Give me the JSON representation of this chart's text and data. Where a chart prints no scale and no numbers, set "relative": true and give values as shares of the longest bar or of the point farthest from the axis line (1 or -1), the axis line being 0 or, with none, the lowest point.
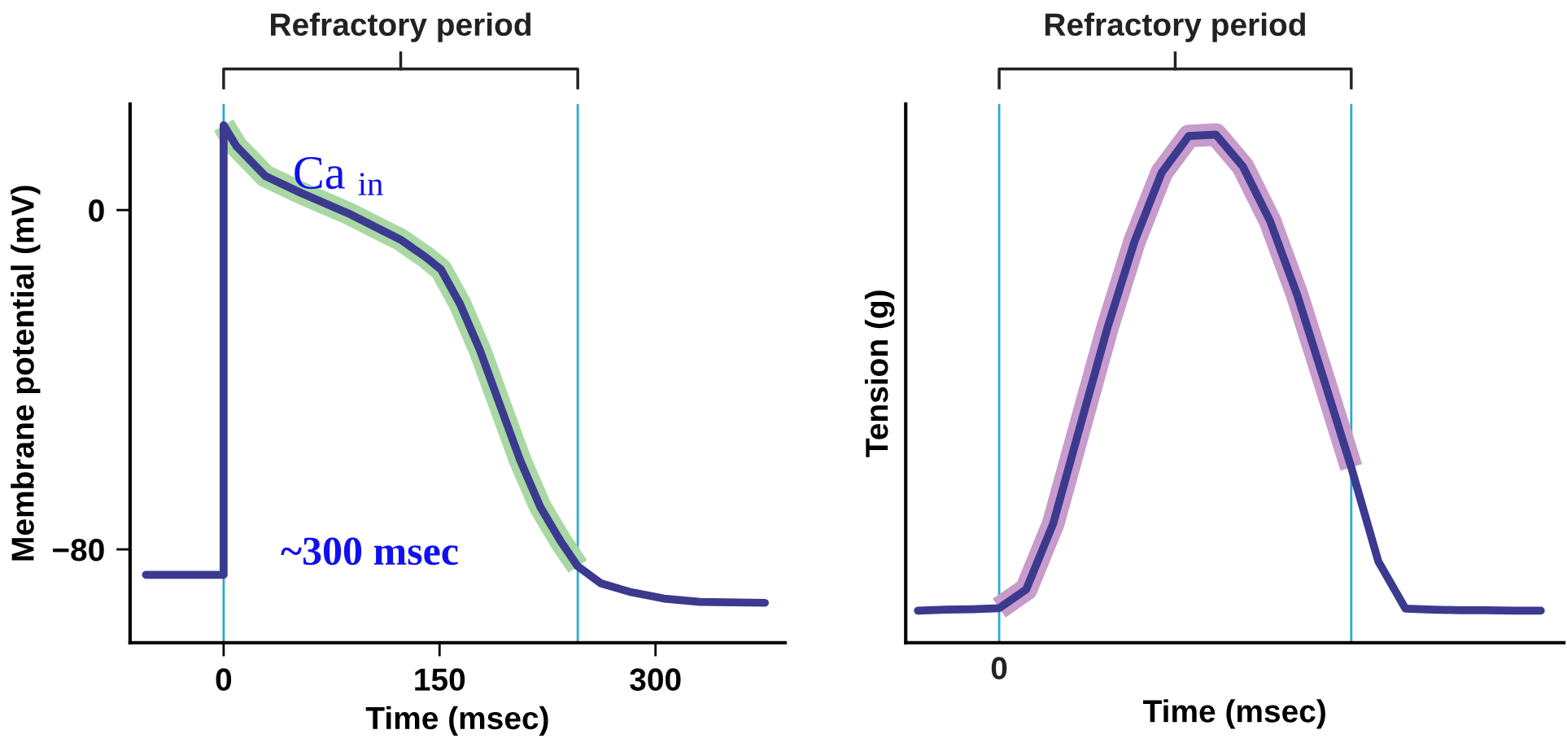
{
  "chart_data": [
    {
      "type": "line",
      "xlabel": "Time (msec)",
      "ylabel": "Membrane potential (mV)",
      "xlim": [
        -65,
        390
      ],
      "xticks": [
        0,
        150,
        300
      ],
      "ylim": [
        -102,
        25
      ],
      "yticks": [
        0,
        {
          "value": -80,
          "label": "−80"
        }
      ],
      "grid": false,
      "legend": false,
      "marker": "none",
      "line_style": "solid",
      "series": [
        {
          "color": "#a9d8a4",
          "x": [
            0,
            9,
            29,
            54,
            88,
            123,
            140,
            151,
            164,
            178,
            192,
            206,
            220,
            234,
            246
          ],
          "values": [
            20,
            15,
            8,
            4,
            -1,
            -7,
            -11,
            -14,
            -22,
            -33,
            -46,
            -59,
            -70,
            -78,
            -84
          ]
        },
        {
          "color": "#3b3a8f",
          "x": [
            -54,
            0,
            0,
            9,
            29,
            54,
            88,
            123,
            140,
            151,
            164,
            178,
            192,
            206,
            220,
            234,
            246,
            262,
            282,
            306,
            331,
            376
          ],
          "values": [
            -86,
            -86,
            20,
            15,
            8,
            4,
            -1,
            -7,
            -11,
            -14,
            -22,
            -33,
            -46,
            -59,
            -70,
            -78,
            -84,
            -88,
            -90,
            -91.6,
            -92.4,
            -92.6
          ]
        }
      ],
      "ref_lines": [
        {
          "axis": "x",
          "value": 0,
          "color": "#29a9d4"
        },
        {
          "axis": "x",
          "value": 246,
          "color": "#29a9d4"
        }
      ],
      "annotations": [
        "Refractory period",
        {
          "text": "Ca $_{in}$",
          "x": 48,
          "y": 5
        },
        "~300 msec"
      ]
    },
    {
      "type": "line",
      "xlabel": "Time (msec)",
      "ylabel": "Tension (g)",
      "relative": true,
      "categories": [
        null,
        null,
        null,
        null,
        null,
        null,
        null,
        null,
        null,
        null,
        null,
        null,
        null,
        null,
        null,
        null,
        null,
        null,
        null,
        null,
        null,
        null,
        null,
        null
      ],
      "grid": false,
      "legend": false,
      "marker": "none",
      "line_style": "solid",
      "series": [
        {
          "color": "#c79bcb",
          "values": [
            null,
            null,
            null,
            0.068,
            0.105,
            0.235,
            0.428,
            0.62,
            0.79,
            0.925,
            0.997,
            1,
            0.937,
            0.83,
            0.685,
            0.516,
            0.345,
            null,
            null,
            null,
            null,
            null,
            null,
            null
          ]
        },
        {
          "color": "#3b3a8f",
          "values": [
            0.063,
            0.065,
            0.066,
            0.068,
            0.105,
            0.235,
            0.428,
            0.62,
            0.79,
            0.925,
            0.997,
            1,
            0.937,
            0.83,
            0.685,
            0.516,
            0.345,
            0.16,
            0.067,
            0.065,
            0.064,
            0.064,
            0.063,
            0.063
          ]
        }
      ],
      "annotations": [
        "Refractory period",
        "0"
      ]
    }
  ]
}
